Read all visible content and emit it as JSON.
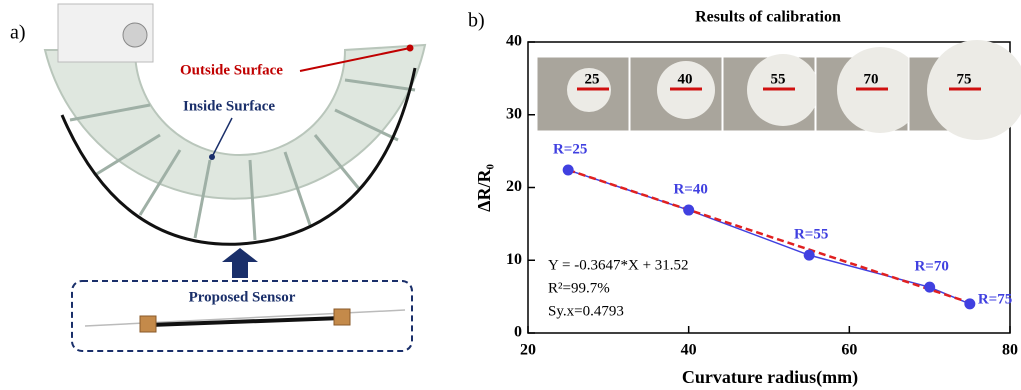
{
  "panel_a": {
    "label": "a)",
    "outside": "Outside Surface",
    "inside": "Inside Surface",
    "sensor": "Proposed Sensor"
  },
  "chart_data": {
    "type": "scatter",
    "panel_label": "b)",
    "title": "Results of calibration",
    "x_label": "Curvature radius(mm)",
    "y_label": "ΔR/R₀",
    "x": [
      25,
      40,
      55,
      70,
      75
    ],
    "series": [
      {
        "color": "#4040e0",
        "values": [
          22.4,
          16.9,
          10.7,
          6.3,
          4.0
        ]
      }
    ],
    "point_labels": [
      "R=25",
      "R=40",
      "R=55",
      "R=70",
      "R=75"
    ],
    "fit": {
      "slope": -0.3647,
      "intercept": 31.52,
      "color": "#e02020"
    },
    "annotations": [
      "Y = -0.3647*X + 31.52",
      "R²=99.7%",
      "Sy.x=0.4793"
    ],
    "inset_labels": [
      "25",
      "40",
      "55",
      "70",
      "75"
    ],
    "xlim": [
      20,
      80
    ],
    "xticks": [
      20,
      40,
      60,
      80
    ],
    "ylim": [
      0,
      40
    ],
    "yticks": [
      0,
      10,
      20,
      30,
      40
    ]
  }
}
